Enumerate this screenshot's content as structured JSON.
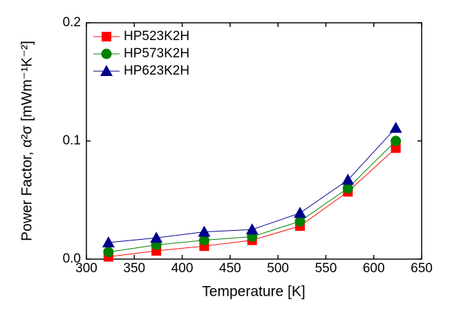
{
  "chart_data": {
    "type": "line",
    "x": [
      323,
      373,
      423,
      473,
      523,
      573,
      623
    ],
    "series": [
      {
        "name": "HP523K2H",
        "color": "#ff0000",
        "marker": "square",
        "values": [
          0.002,
          0.007,
          0.011,
          0.016,
          0.028,
          0.057,
          0.094
        ]
      },
      {
        "name": "HP573K2H",
        "color": "#008000",
        "marker": "circle",
        "values": [
          0.006,
          0.012,
          0.016,
          0.019,
          0.032,
          0.06,
          0.1
        ]
      },
      {
        "name": "HP623K2H",
        "color": "#00008b",
        "marker": "triangle",
        "values": [
          0.014,
          0.018,
          0.023,
          0.025,
          0.039,
          0.067,
          0.111
        ]
      }
    ],
    "xlabel": "Temperature [K]",
    "ylabel": "Power Factor, α²σ [mWm⁻¹K⁻²]",
    "xlim": [
      300,
      650
    ],
    "xticks": [
      300,
      350,
      400,
      450,
      500,
      550,
      600,
      650
    ],
    "ylim": [
      0,
      0.2
    ],
    "yticks": [
      {
        "value": 0,
        "label": "0.0"
      },
      0.1,
      0.2
    ],
    "legend": "upper left"
  }
}
